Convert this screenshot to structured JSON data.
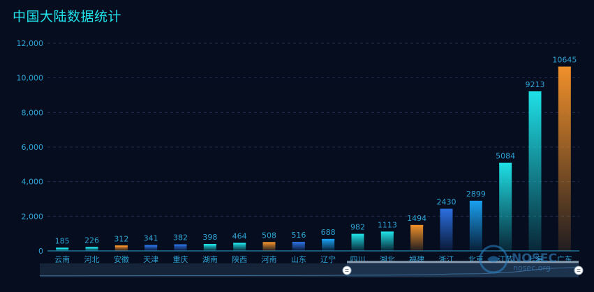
{
  "title": "中国大陆数据统计",
  "watermark": {
    "brand": "NOSEC",
    "site": "nosec.org"
  },
  "colors": {
    "background": "#050d1f",
    "title": "#22e3ea",
    "axis_text": "#2fa4d4",
    "cyan": "#1fe0e6",
    "orange": "#f0902a",
    "blue": "#2b6fe0",
    "skyblue": "#1aa0f0"
  },
  "chart_data": {
    "type": "bar",
    "categories": [
      "云南",
      "河北",
      "安徽",
      "天津",
      "重庆",
      "湖南",
      "陕西",
      "河南",
      "山东",
      "辽宁",
      "四川",
      "湖北",
      "福建",
      "浙江",
      "北京",
      "江苏",
      "上海",
      "广东"
    ],
    "values": [
      185,
      226,
      312,
      341,
      382,
      398,
      464,
      508,
      516,
      688,
      982,
      1113,
      1494,
      2430,
      2899,
      5084,
      9213,
      10645
    ],
    "bar_colors": [
      "cyan",
      "cyan",
      "orange",
      "blue",
      "blue",
      "cyan",
      "cyan",
      "orange",
      "blue",
      "skyblue",
      "cyan",
      "cyan",
      "orange",
      "blue",
      "skyblue",
      "cyan",
      "cyan",
      "orange"
    ],
    "title": "中国大陆数据统计",
    "xlabel": "",
    "ylabel": "",
    "ylim": [
      0,
      12000
    ],
    "yticks": [
      "0",
      "2,000",
      "4,000",
      "6,000",
      "8,000",
      "10,000",
      "12,000"
    ],
    "grid": true,
    "data_labels": true,
    "datazoom": {
      "start": 0.57,
      "end": 1.0
    }
  }
}
